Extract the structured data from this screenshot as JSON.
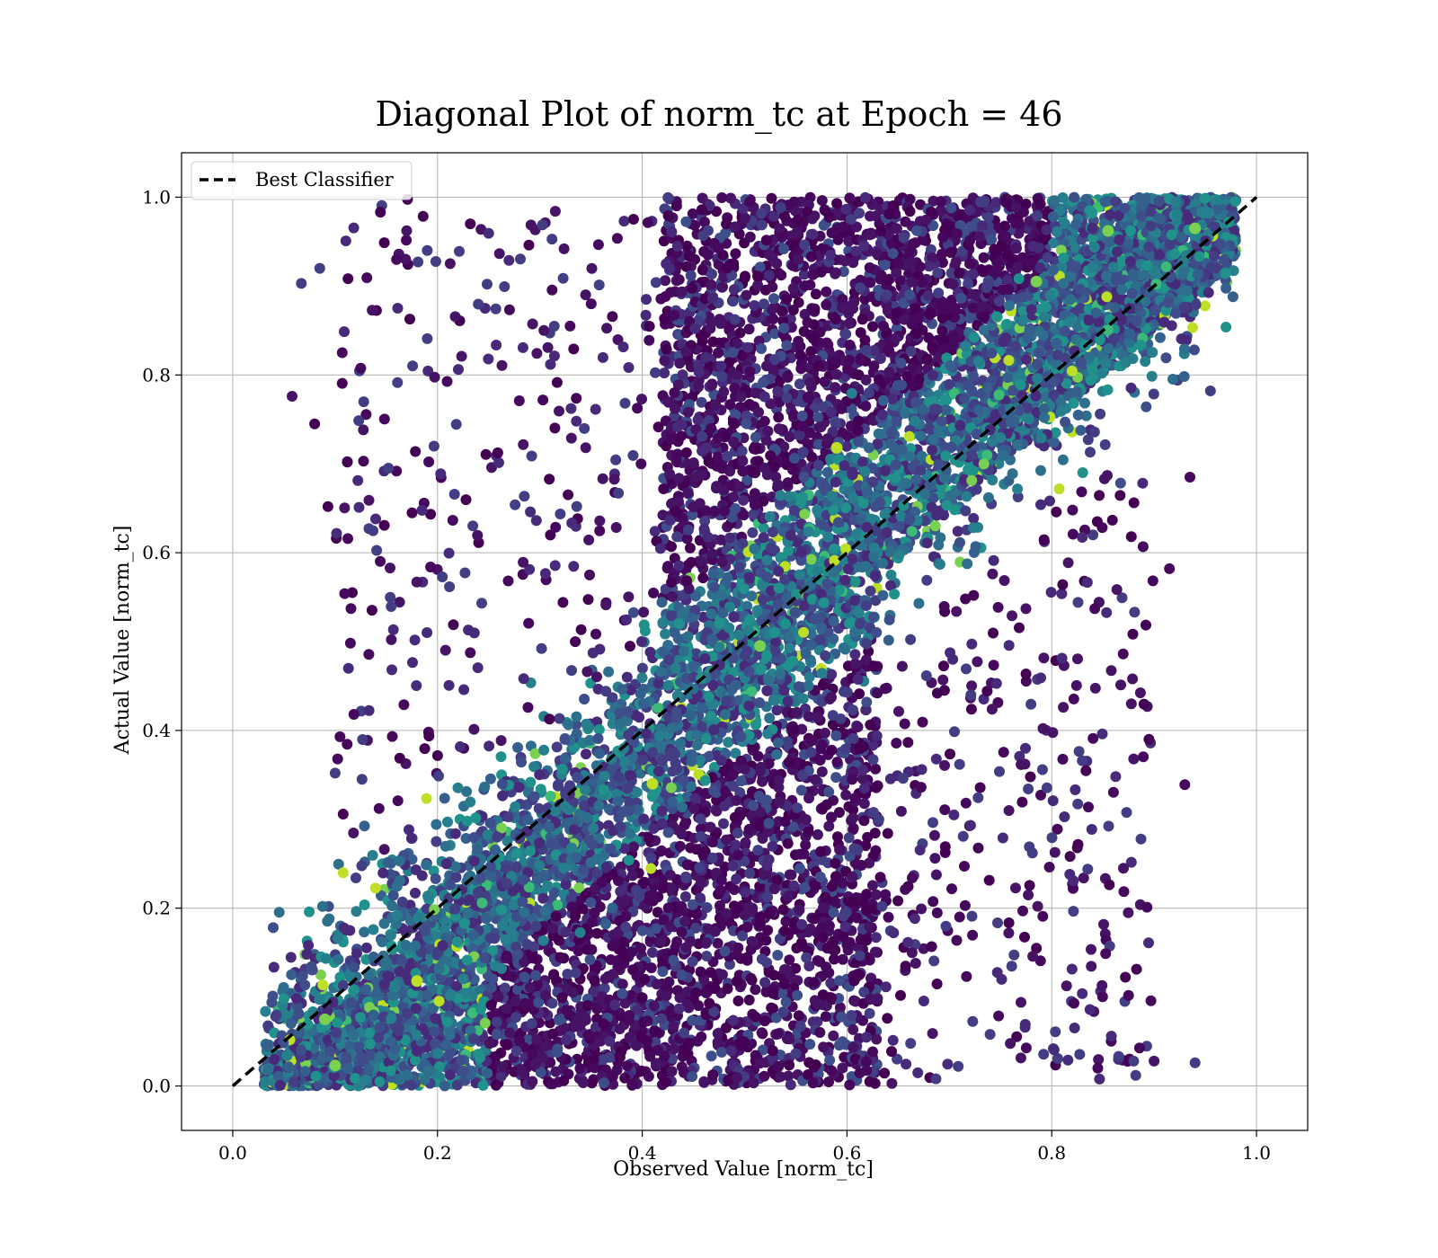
{
  "chart_data": {
    "type": "scatter",
    "title": "Diagonal Plot of norm_tc at Epoch = 46",
    "xlabel": "Observed Value [norm_tc]",
    "ylabel": "Actual Value [norm_tc]",
    "xlim": [
      -0.05,
      1.05
    ],
    "ylim": [
      -0.05,
      1.05
    ],
    "xticks": [
      "0.0",
      "0.2",
      "0.4",
      "0.6",
      "0.8",
      "1.0"
    ],
    "yticks": [
      "0.0",
      "0.2",
      "0.4",
      "0.6",
      "0.8",
      "1.0"
    ],
    "grid": true,
    "colormap": "viridis",
    "legend": {
      "position": "top-left",
      "entries": [
        "Best Classifier"
      ]
    },
    "reference_line": {
      "name": "Best Classifier",
      "x": [
        0,
        1
      ],
      "y": [
        0,
        1
      ],
      "style": "dashed",
      "color": "#000000"
    },
    "point_density": {
      "description_free": true,
      "clusters": [
        {
          "x_range": [
            0.03,
            0.62
          ],
          "y_range": [
            0.0,
            0.55
          ],
          "weight": 0.45
        },
        {
          "x_range": [
            0.42,
            0.98
          ],
          "y_range": [
            0.45,
            1.0
          ],
          "weight": 0.45
        },
        {
          "x_range": [
            0.05,
            0.95
          ],
          "y_range": [
            0.0,
            1.0
          ],
          "weight": 0.1
        }
      ]
    },
    "highlight_points": [
      {
        "x": 0.94,
        "y": 0.965
      },
      {
        "x": 0.855,
        "y": 0.962
      },
      {
        "x": 0.59,
        "y": 0.718
      },
      {
        "x": 0.41,
        "y": 0.34
      },
      {
        "x": 0.515,
        "y": 0.495
      },
      {
        "x": 0.18,
        "y": 0.118
      },
      {
        "x": 0.09,
        "y": 0.075
      },
      {
        "x": 0.785,
        "y": 0.905
      },
      {
        "x": 0.1,
        "y": 0.023
      }
    ],
    "outlier_points": [
      {
        "x": 0.067,
        "y": 0.903
      },
      {
        "x": 0.085,
        "y": 0.92
      },
      {
        "x": 0.058,
        "y": 0.776
      },
      {
        "x": 0.08,
        "y": 0.745
      },
      {
        "x": 0.107,
        "y": 0.825
      },
      {
        "x": 0.093,
        "y": 0.652
      },
      {
        "x": 0.112,
        "y": 0.702
      },
      {
        "x": 0.16,
        "y": 0.93
      },
      {
        "x": 0.19,
        "y": 0.94
      },
      {
        "x": 0.133,
        "y": 0.659
      },
      {
        "x": 0.1,
        "y": 0.352
      },
      {
        "x": 0.113,
        "y": 0.47
      },
      {
        "x": 0.88,
        "y": 0.028
      },
      {
        "x": 0.9,
        "y": 0.028
      },
      {
        "x": 0.94,
        "y": 0.026
      },
      {
        "x": 0.93,
        "y": 0.339
      },
      {
        "x": 0.915,
        "y": 0.582
      },
      {
        "x": 0.935,
        "y": 0.685
      },
      {
        "x": 0.825,
        "y": 0.268
      },
      {
        "x": 0.87,
        "y": 0.245
      },
      {
        "x": 0.88,
        "y": 0.368
      },
      {
        "x": 0.895,
        "y": 0.39
      },
      {
        "x": 0.845,
        "y": 0.02
      },
      {
        "x": 0.875,
        "y": 0.102
      }
    ]
  }
}
